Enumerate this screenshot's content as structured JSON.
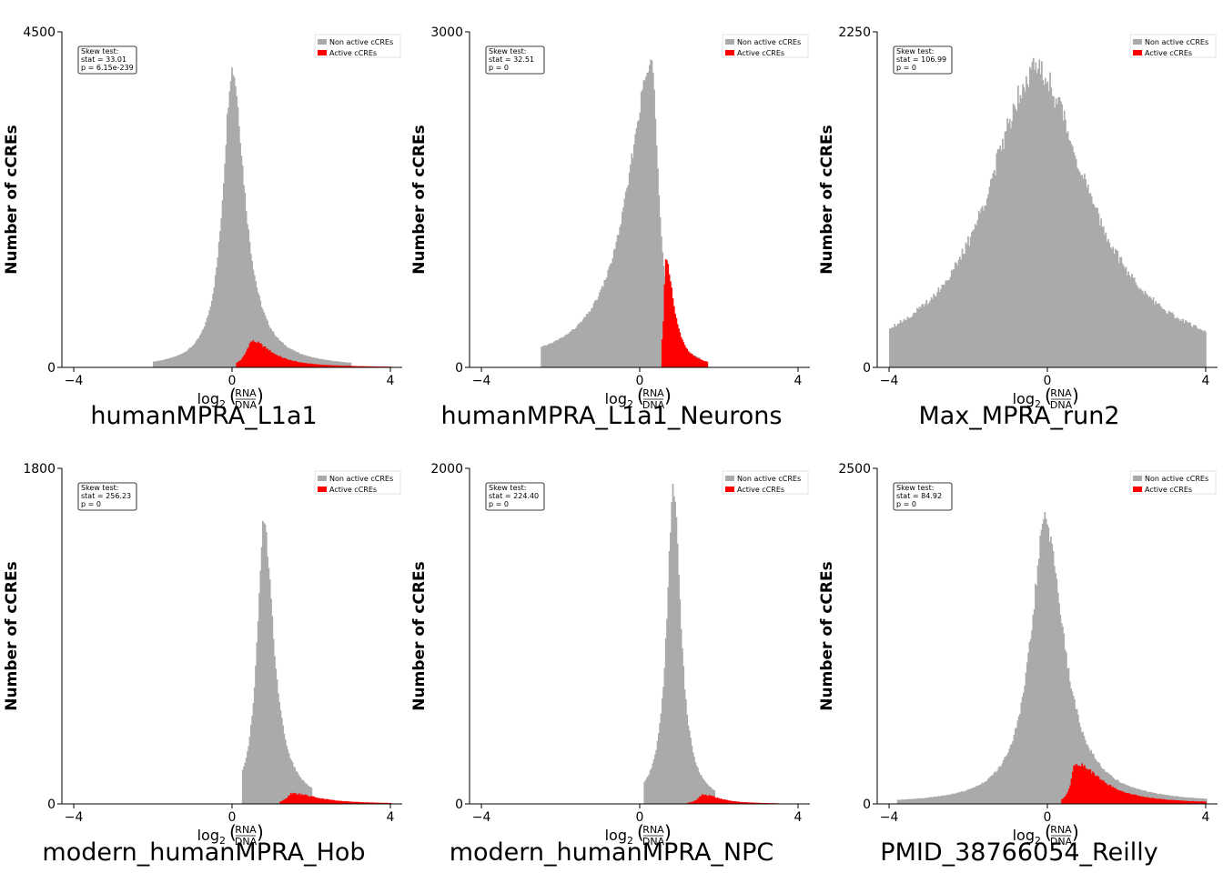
{
  "chart_data": [
    {
      "type": "bar",
      "title": "humanMPRA_L1a1",
      "ylabel": "Number of cCREs",
      "xlabel": {
        "prefix": "log",
        "sub": "2",
        "num": "RNA",
        "den": "DNA"
      },
      "xlim": [
        -4.3,
        4.3
      ],
      "ylim": [
        0,
        4500
      ],
      "xticks": [
        -4,
        0,
        4
      ],
      "xtick_labels": [
        "−4",
        "0",
        "4"
      ],
      "yticks": [
        0,
        4500
      ],
      "ytick_labels": [
        "0",
        "4500"
      ],
      "legend": {
        "placement": "top-right",
        "entries": [
          {
            "label": "Non active cCREs",
            "color": "#aaaaaa"
          },
          {
            "label": "Active cCREs",
            "color": "#ff0000"
          }
        ]
      },
      "stats": [
        "Skew test:",
        "stat = 33.01",
        "p = 6.15e-239"
      ],
      "series": [
        {
          "name": "Non active cCREs",
          "color": "#aaaaaa",
          "dist": {
            "peak": 0.0,
            "height": 4000,
            "sl": 0.28,
            "sr": 0.38,
            "range": [
              -2.0,
              3.0
            ],
            "noise": 0.03
          }
        },
        {
          "name": "Active cCREs",
          "color": "#ff0000",
          "dist": {
            "peak": 0.5,
            "height": 350,
            "sl": 0.18,
            "sr": 0.6,
            "range": [
              0.1,
              4.0
            ],
            "noise": 0.06
          }
        }
      ]
    },
    {
      "type": "bar",
      "title": "humanMPRA_L1a1_Neurons",
      "ylabel": "Number of cCREs",
      "xlabel": {
        "prefix": "log",
        "sub": "2",
        "num": "RNA",
        "den": "DNA"
      },
      "xlim": [
        -4.3,
        4.3
      ],
      "ylim": [
        0,
        3000
      ],
      "xticks": [
        -4,
        0,
        4
      ],
      "xtick_labels": [
        "−4",
        "0",
        "4"
      ],
      "yticks": [
        0,
        3000
      ],
      "ytick_labels": [
        "0",
        "3000"
      ],
      "legend": {
        "placement": "top-right",
        "entries": [
          {
            "label": "Non active cCREs",
            "color": "#aaaaaa"
          },
          {
            "label": "Active cCREs",
            "color": "#ff0000"
          }
        ]
      },
      "stats": [
        "Skew test:",
        "stat = 32.51",
        "p = 0"
      ],
      "series": [
        {
          "name": "Non active cCREs",
          "color": "#aaaaaa",
          "dist": {
            "peak": 0.3,
            "height": 2700,
            "sl": 0.75,
            "sr": 0.22,
            "range": [
              -2.5,
              1.5
            ],
            "noise": 0.03
          }
        },
        {
          "name": "Active cCREs",
          "color": "#ff0000",
          "dist": {
            "peak": 0.65,
            "height": 950,
            "sl": 0.05,
            "sr": 0.25,
            "range": [
              0.55,
              1.7
            ],
            "noise": 0.04
          }
        }
      ]
    },
    {
      "type": "bar",
      "title": "Max_MPRA_run2",
      "ylabel": "Number of cCREs",
      "xlabel": {
        "prefix": "log",
        "sub": "2",
        "num": "RNA",
        "den": "DNA"
      },
      "xlim": [
        -4.3,
        4.3
      ],
      "ylim": [
        0,
        2250
      ],
      "xticks": [
        -4,
        0,
        4
      ],
      "xtick_labels": [
        "−4",
        "0",
        "4"
      ],
      "yticks": [
        0,
        2250
      ],
      "ytick_labels": [
        "0",
        "2250"
      ],
      "legend": {
        "placement": "top-right",
        "entries": [
          {
            "label": "Non active cCREs",
            "color": "#aaaaaa"
          },
          {
            "label": "Active cCREs",
            "color": "#ff0000"
          }
        ]
      },
      "stats": [
        "Skew test:",
        "stat = 106.99",
        "p = 0"
      ],
      "series": [
        {
          "name": "Non active cCREs",
          "color": "#aaaaaa",
          "dist": {
            "peak": -0.3,
            "height": 2000,
            "sl": 1.45,
            "sr": 1.6,
            "range": [
              -4.0,
              4.0
            ],
            "noise": 0.05
          }
        }
      ]
    },
    {
      "type": "bar",
      "title": "modern_humanMPRA_Hob",
      "ylabel": "Number of cCREs",
      "xlabel": {
        "prefix": "log",
        "sub": "2",
        "num": "RNA",
        "den": "DNA"
      },
      "xlim": [
        -4.3,
        4.3
      ],
      "ylim": [
        0,
        1800
      ],
      "xticks": [
        -4,
        0,
        4
      ],
      "xtick_labels": [
        "−4",
        "0",
        "4"
      ],
      "yticks": [
        0,
        1800
      ],
      "ytick_labels": [
        "0",
        "1800"
      ],
      "legend": {
        "placement": "top-right",
        "entries": [
          {
            "label": "Non active cCREs",
            "color": "#aaaaaa"
          },
          {
            "label": "Active cCREs",
            "color": "#ff0000"
          }
        ]
      },
      "stats": [
        "Skew test:",
        "stat = 256.23",
        "p = 0"
      ],
      "series": [
        {
          "name": "Non active cCREs",
          "color": "#aaaaaa",
          "dist": {
            "peak": 0.8,
            "height": 1500,
            "sl": 0.2,
            "sr": 0.3,
            "range": [
              0.25,
              2.0
            ],
            "noise": 0.03
          }
        },
        {
          "name": "Active cCREs",
          "color": "#ff0000",
          "dist": {
            "peak": 1.5,
            "height": 55,
            "sl": 0.15,
            "sr": 0.8,
            "range": [
              1.2,
              4.0
            ],
            "noise": 0.1
          }
        }
      ]
    },
    {
      "type": "bar",
      "title": "modern_humanMPRA_NPC",
      "ylabel": "Number of cCREs",
      "xlabel": {
        "prefix": "log",
        "sub": "2",
        "num": "RNA",
        "den": "DNA"
      },
      "xlim": [
        -4.3,
        4.3
      ],
      "ylim": [
        0,
        2000
      ],
      "xticks": [
        -4,
        0,
        4
      ],
      "xtick_labels": [
        "−4",
        "0",
        "4"
      ],
      "yticks": [
        0,
        2000
      ],
      "ytick_labels": [
        "0",
        "2000"
      ],
      "legend": {
        "placement": "top-right",
        "entries": [
          {
            "label": "Non active cCREs",
            "color": "#aaaaaa"
          },
          {
            "label": "Active cCREs",
            "color": "#ff0000"
          }
        ]
      },
      "stats": [
        "Skew test:",
        "stat = 224.40",
        "p = 0"
      ],
      "series": [
        {
          "name": "Non active cCREs",
          "color": "#aaaaaa",
          "dist": {
            "peak": 0.85,
            "height": 1880,
            "sl": 0.2,
            "sr": 0.22,
            "range": [
              0.1,
              1.9
            ],
            "noise": 0.03
          }
        },
        {
          "name": "Active cCREs",
          "color": "#ff0000",
          "dist": {
            "peak": 1.6,
            "height": 55,
            "sl": 0.15,
            "sr": 0.5,
            "range": [
              1.2,
              3.5
            ],
            "noise": 0.1
          }
        }
      ]
    },
    {
      "type": "bar",
      "title": "PMID_38766054_Reilly",
      "ylabel": "Number of cCREs",
      "xlabel": {
        "prefix": "log",
        "sub": "2",
        "num": "RNA",
        "den": "DNA"
      },
      "xlim": [
        -4.3,
        4.3
      ],
      "ylim": [
        0,
        2500
      ],
      "xticks": [
        -4,
        0,
        4
      ],
      "xtick_labels": [
        "−4",
        "0",
        "4"
      ],
      "yticks": [
        0,
        2500
      ],
      "ytick_labels": [
        "0",
        "2500"
      ],
      "legend": {
        "placement": "top-right",
        "entries": [
          {
            "label": "Non active cCREs",
            "color": "#aaaaaa"
          },
          {
            "label": "Active cCREs",
            "color": "#ff0000"
          }
        ]
      },
      "stats": [
        "Skew test:",
        "stat = 84.92",
        "p = 0"
      ],
      "series": [
        {
          "name": "Non active cCREs",
          "color": "#aaaaaa",
          "dist": {
            "peak": -0.05,
            "height": 2100,
            "sl": 0.45,
            "sr": 0.55,
            "range": [
              -3.8,
              4.0
            ],
            "noise": 0.04
          }
        },
        {
          "name": "Active cCREs",
          "color": "#ff0000",
          "dist": {
            "peak": 0.7,
            "height": 300,
            "sl": 0.12,
            "sr": 0.8,
            "range": [
              0.35,
              4.0
            ],
            "noise": 0.06
          }
        }
      ]
    }
  ]
}
